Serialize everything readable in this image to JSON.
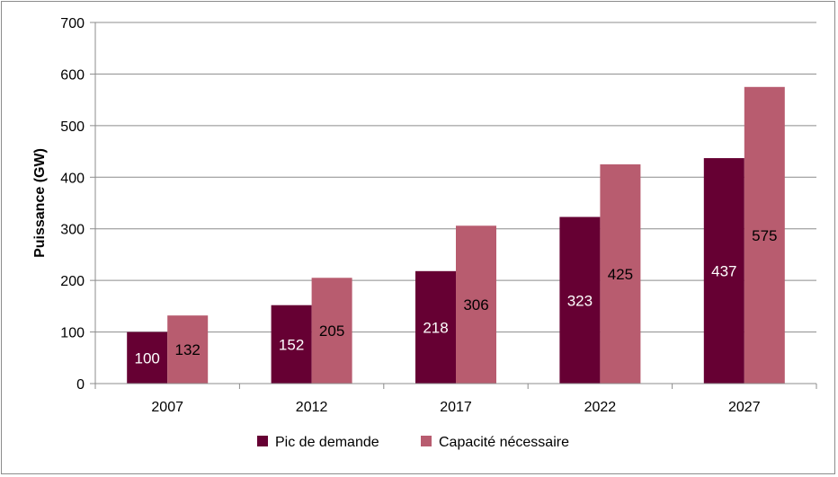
{
  "chart_data": {
    "type": "bar",
    "categories": [
      "2007",
      "2012",
      "2017",
      "2022",
      "2027"
    ],
    "series": [
      {
        "name": "Pic de demande",
        "values": [
          100,
          152,
          218,
          323,
          437
        ],
        "color": "#660033",
        "label_color": "#ffffff"
      },
      {
        "name": "Capacité nécessaire",
        "values": [
          132,
          205,
          306,
          425,
          575
        ],
        "color": "#b85c6f",
        "label_color": "#000000"
      }
    ],
    "ylabel": "Puissance (GW)",
    "xlabel": "",
    "ylim": [
      0,
      700
    ],
    "yticks": [
      "0",
      "100",
      "200",
      "300",
      "400",
      "500",
      "600",
      "700"
    ],
    "grid": true,
    "legend_position": "bottom",
    "gridline_color": "#8c8c8c"
  }
}
